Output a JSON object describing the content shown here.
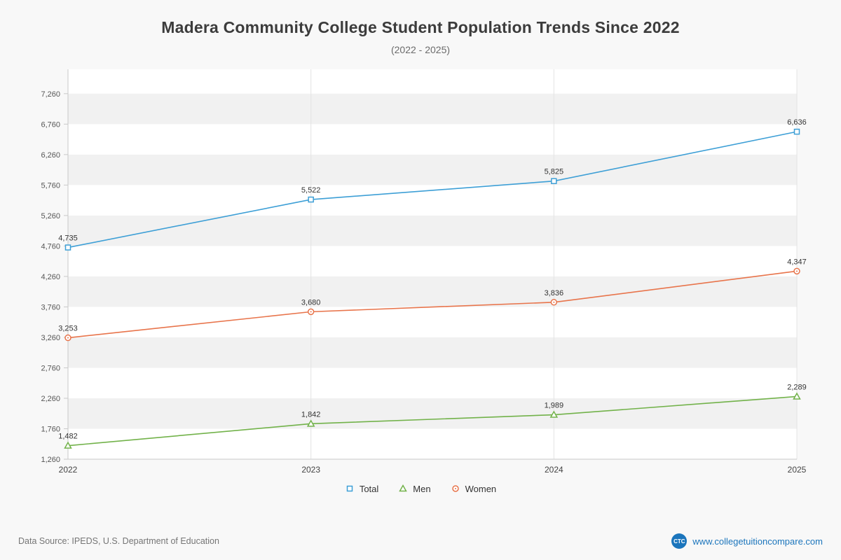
{
  "header": {
    "title": "Madera Community College Student Population Trends Since 2022",
    "subtitle": "(2022 - 2025)"
  },
  "chart_data": {
    "type": "line",
    "categories": [
      "2022",
      "2023",
      "2024",
      "2025"
    ],
    "series": [
      {
        "name": "Total",
        "color": "#3d9fd6",
        "marker": "square",
        "values": [
          4735,
          5522,
          5825,
          6636
        ]
      },
      {
        "name": "Men",
        "color": "#72b24a",
        "marker": "triangle",
        "values": [
          1482,
          1842,
          1989,
          2289
        ]
      },
      {
        "name": "Women",
        "color": "#e8744b",
        "marker": "circle",
        "values": [
          3253,
          3680,
          3836,
          4347
        ]
      }
    ],
    "title": "Madera Community College Student Population Trends Since 2022",
    "subtitle": "(2022 - 2025)",
    "xlabel": "",
    "ylabel": "",
    "ylim": [
      1260,
      7660
    ],
    "yticks": [
      1260,
      1760,
      2260,
      2760,
      3260,
      3760,
      4260,
      4760,
      5260,
      5760,
      6260,
      6760,
      7260
    ],
    "grid": true,
    "legend_position": "bottom",
    "band_color": "#f1f1f1",
    "plot_background": "#ffffff",
    "axis_color": "#c9c9c9",
    "gridline_color": "#e4e4e4",
    "tick_label_color": "#555555",
    "data_label_color": "#333333"
  },
  "footer": {
    "source": "Data Source: IPEDS, U.S. Department of Education",
    "logo": "CTC",
    "website": "www.collegetuitioncompare.com"
  }
}
